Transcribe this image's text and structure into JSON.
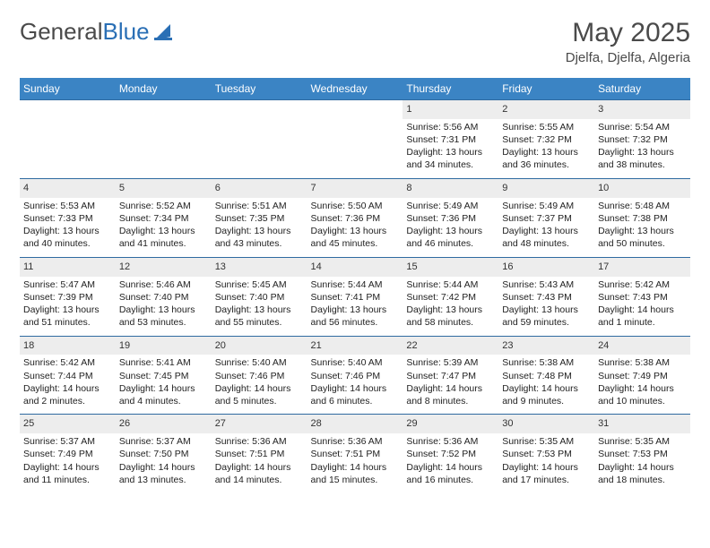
{
  "brand": {
    "name_gray": "General",
    "name_blue": "Blue"
  },
  "header": {
    "month": "May 2025",
    "location": "Djelfa, Djelfa, Algeria"
  },
  "styling": {
    "header_bg": "#3b84c4",
    "header_text": "#ffffff",
    "daynum_bg": "#ededed",
    "row_border": "#2f6aa0",
    "page_bg": "#ffffff",
    "text_color": "#222222",
    "logo_blue": "#2a6fb5",
    "month_fontsize": 30,
    "location_fontsize": 15,
    "dayhead_fontsize": 12,
    "cell_fontsize": 10.5
  },
  "day_headers": [
    "Sunday",
    "Monday",
    "Tuesday",
    "Wednesday",
    "Thursday",
    "Friday",
    "Saturday"
  ],
  "weeks": [
    [
      {
        "n": "",
        "l1": "",
        "l2": "",
        "l3": "",
        "l4": ""
      },
      {
        "n": "",
        "l1": "",
        "l2": "",
        "l3": "",
        "l4": ""
      },
      {
        "n": "",
        "l1": "",
        "l2": "",
        "l3": "",
        "l4": ""
      },
      {
        "n": "",
        "l1": "",
        "l2": "",
        "l3": "",
        "l4": ""
      },
      {
        "n": "1",
        "l1": "Sunrise: 5:56 AM",
        "l2": "Sunset: 7:31 PM",
        "l3": "Daylight: 13 hours",
        "l4": "and 34 minutes."
      },
      {
        "n": "2",
        "l1": "Sunrise: 5:55 AM",
        "l2": "Sunset: 7:32 PM",
        "l3": "Daylight: 13 hours",
        "l4": "and 36 minutes."
      },
      {
        "n": "3",
        "l1": "Sunrise: 5:54 AM",
        "l2": "Sunset: 7:32 PM",
        "l3": "Daylight: 13 hours",
        "l4": "and 38 minutes."
      }
    ],
    [
      {
        "n": "4",
        "l1": "Sunrise: 5:53 AM",
        "l2": "Sunset: 7:33 PM",
        "l3": "Daylight: 13 hours",
        "l4": "and 40 minutes."
      },
      {
        "n": "5",
        "l1": "Sunrise: 5:52 AM",
        "l2": "Sunset: 7:34 PM",
        "l3": "Daylight: 13 hours",
        "l4": "and 41 minutes."
      },
      {
        "n": "6",
        "l1": "Sunrise: 5:51 AM",
        "l2": "Sunset: 7:35 PM",
        "l3": "Daylight: 13 hours",
        "l4": "and 43 minutes."
      },
      {
        "n": "7",
        "l1": "Sunrise: 5:50 AM",
        "l2": "Sunset: 7:36 PM",
        "l3": "Daylight: 13 hours",
        "l4": "and 45 minutes."
      },
      {
        "n": "8",
        "l1": "Sunrise: 5:49 AM",
        "l2": "Sunset: 7:36 PM",
        "l3": "Daylight: 13 hours",
        "l4": "and 46 minutes."
      },
      {
        "n": "9",
        "l1": "Sunrise: 5:49 AM",
        "l2": "Sunset: 7:37 PM",
        "l3": "Daylight: 13 hours",
        "l4": "and 48 minutes."
      },
      {
        "n": "10",
        "l1": "Sunrise: 5:48 AM",
        "l2": "Sunset: 7:38 PM",
        "l3": "Daylight: 13 hours",
        "l4": "and 50 minutes."
      }
    ],
    [
      {
        "n": "11",
        "l1": "Sunrise: 5:47 AM",
        "l2": "Sunset: 7:39 PM",
        "l3": "Daylight: 13 hours",
        "l4": "and 51 minutes."
      },
      {
        "n": "12",
        "l1": "Sunrise: 5:46 AM",
        "l2": "Sunset: 7:40 PM",
        "l3": "Daylight: 13 hours",
        "l4": "and 53 minutes."
      },
      {
        "n": "13",
        "l1": "Sunrise: 5:45 AM",
        "l2": "Sunset: 7:40 PM",
        "l3": "Daylight: 13 hours",
        "l4": "and 55 minutes."
      },
      {
        "n": "14",
        "l1": "Sunrise: 5:44 AM",
        "l2": "Sunset: 7:41 PM",
        "l3": "Daylight: 13 hours",
        "l4": "and 56 minutes."
      },
      {
        "n": "15",
        "l1": "Sunrise: 5:44 AM",
        "l2": "Sunset: 7:42 PM",
        "l3": "Daylight: 13 hours",
        "l4": "and 58 minutes."
      },
      {
        "n": "16",
        "l1": "Sunrise: 5:43 AM",
        "l2": "Sunset: 7:43 PM",
        "l3": "Daylight: 13 hours",
        "l4": "and 59 minutes."
      },
      {
        "n": "17",
        "l1": "Sunrise: 5:42 AM",
        "l2": "Sunset: 7:43 PM",
        "l3": "Daylight: 14 hours",
        "l4": "and 1 minute."
      }
    ],
    [
      {
        "n": "18",
        "l1": "Sunrise: 5:42 AM",
        "l2": "Sunset: 7:44 PM",
        "l3": "Daylight: 14 hours",
        "l4": "and 2 minutes."
      },
      {
        "n": "19",
        "l1": "Sunrise: 5:41 AM",
        "l2": "Sunset: 7:45 PM",
        "l3": "Daylight: 14 hours",
        "l4": "and 4 minutes."
      },
      {
        "n": "20",
        "l1": "Sunrise: 5:40 AM",
        "l2": "Sunset: 7:46 PM",
        "l3": "Daylight: 14 hours",
        "l4": "and 5 minutes."
      },
      {
        "n": "21",
        "l1": "Sunrise: 5:40 AM",
        "l2": "Sunset: 7:46 PM",
        "l3": "Daylight: 14 hours",
        "l4": "and 6 minutes."
      },
      {
        "n": "22",
        "l1": "Sunrise: 5:39 AM",
        "l2": "Sunset: 7:47 PM",
        "l3": "Daylight: 14 hours",
        "l4": "and 8 minutes."
      },
      {
        "n": "23",
        "l1": "Sunrise: 5:38 AM",
        "l2": "Sunset: 7:48 PM",
        "l3": "Daylight: 14 hours",
        "l4": "and 9 minutes."
      },
      {
        "n": "24",
        "l1": "Sunrise: 5:38 AM",
        "l2": "Sunset: 7:49 PM",
        "l3": "Daylight: 14 hours",
        "l4": "and 10 minutes."
      }
    ],
    [
      {
        "n": "25",
        "l1": "Sunrise: 5:37 AM",
        "l2": "Sunset: 7:49 PM",
        "l3": "Daylight: 14 hours",
        "l4": "and 11 minutes."
      },
      {
        "n": "26",
        "l1": "Sunrise: 5:37 AM",
        "l2": "Sunset: 7:50 PM",
        "l3": "Daylight: 14 hours",
        "l4": "and 13 minutes."
      },
      {
        "n": "27",
        "l1": "Sunrise: 5:36 AM",
        "l2": "Sunset: 7:51 PM",
        "l3": "Daylight: 14 hours",
        "l4": "and 14 minutes."
      },
      {
        "n": "28",
        "l1": "Sunrise: 5:36 AM",
        "l2": "Sunset: 7:51 PM",
        "l3": "Daylight: 14 hours",
        "l4": "and 15 minutes."
      },
      {
        "n": "29",
        "l1": "Sunrise: 5:36 AM",
        "l2": "Sunset: 7:52 PM",
        "l3": "Daylight: 14 hours",
        "l4": "and 16 minutes."
      },
      {
        "n": "30",
        "l1": "Sunrise: 5:35 AM",
        "l2": "Sunset: 7:53 PM",
        "l3": "Daylight: 14 hours",
        "l4": "and 17 minutes."
      },
      {
        "n": "31",
        "l1": "Sunrise: 5:35 AM",
        "l2": "Sunset: 7:53 PM",
        "l3": "Daylight: 14 hours",
        "l4": "and 18 minutes."
      }
    ]
  ]
}
